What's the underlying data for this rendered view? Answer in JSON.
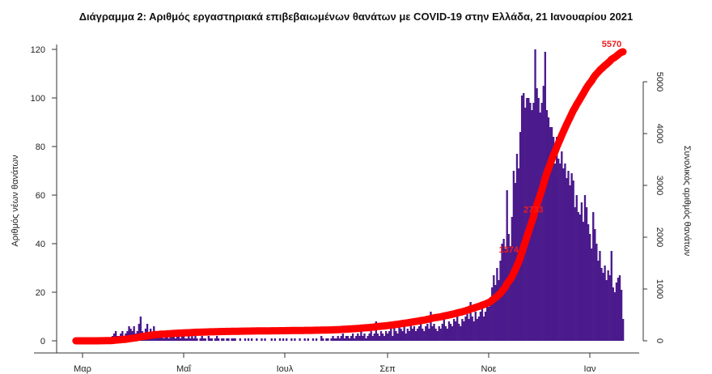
{
  "chart_data": {
    "type": "bar+line",
    "title": "Διάγραμμα 2: Αριθμός εργαστηριακά επιβεβαιωμένων θανάτων με COVID-19 στην Ελλάδα, 21 Ιανουαρίου 2021",
    "ylabel": "Αριθμός νέων θανάτων",
    "y2label": "Συνολικός αριθμός θανάτων",
    "xlabel": "",
    "x_start": "2020-02-26",
    "x_end": "2021-01-21",
    "x_ticks": [
      {
        "date": "2020-03-01",
        "label": "Μαρ"
      },
      {
        "date": "2020-05-01",
        "label": "Μαΐ"
      },
      {
        "date": "2020-07-01",
        "label": "Ιουλ"
      },
      {
        "date": "2020-09-01",
        "label": "Σεπ"
      },
      {
        "date": "2020-11-01",
        "label": "Νοε"
      },
      {
        "date": "2021-01-01",
        "label": "Ιαν"
      }
    ],
    "ylim": [
      0,
      120
    ],
    "y_ticks": [
      "0",
      "20",
      "40",
      "60",
      "80",
      "100",
      "120"
    ],
    "y2lim": [
      0,
      5000
    ],
    "y2_ticks": [
      "0",
      "1000",
      "2000",
      "3000",
      "4000",
      "5000"
    ],
    "grid": false,
    "colors": {
      "bars": "#4b1a8c",
      "cumulative": "#ff0000"
    },
    "series": [
      {
        "type": "bar",
        "axis": "left",
        "daily_deaths": [
          0,
          0,
          0,
          0,
          0,
          0,
          0,
          0,
          0,
          0,
          0,
          0,
          0,
          0,
          0,
          1,
          0,
          1,
          1,
          0,
          1,
          1,
          2,
          3,
          4,
          2,
          2,
          3,
          4,
          2,
          3,
          4,
          6,
          5,
          4,
          6,
          3,
          4,
          7,
          10,
          4,
          3,
          5,
          7,
          3,
          5,
          3,
          6,
          4,
          3,
          2,
          3,
          2,
          1,
          2,
          2,
          1,
          2,
          3,
          2,
          1,
          2,
          3,
          1,
          2,
          2,
          1,
          1,
          2,
          1,
          3,
          1,
          2,
          1,
          0,
          1,
          2,
          1,
          1,
          0,
          2,
          1,
          1,
          0,
          1,
          2,
          1,
          0,
          1,
          1,
          0,
          1,
          1,
          0,
          1,
          1,
          1,
          0,
          0,
          1,
          0,
          0,
          1,
          0,
          1,
          0,
          1,
          0,
          0,
          1,
          0,
          0,
          1,
          0,
          1,
          0,
          0,
          0,
          1,
          0,
          1,
          0,
          0,
          1,
          0,
          1,
          0,
          1,
          0,
          0,
          1,
          0,
          1,
          0,
          0,
          1,
          0,
          0,
          1,
          0,
          1,
          0,
          0,
          1,
          0,
          1,
          0,
          0,
          2,
          1,
          0,
          1,
          1,
          0,
          1,
          2,
          1,
          1,
          2,
          1,
          2,
          3,
          1,
          2,
          2,
          1,
          2,
          3,
          1,
          2,
          3,
          2,
          4,
          2,
          3,
          1,
          2,
          3,
          4,
          2,
          3,
          8,
          3,
          2,
          4,
          3,
          2,
          4,
          3,
          4,
          5,
          2,
          6,
          4,
          3,
          6,
          5,
          4,
          6,
          3,
          5,
          4,
          7,
          5,
          6,
          4,
          5,
          6,
          7,
          5,
          4,
          6,
          7,
          5,
          12,
          6,
          7,
          5,
          4,
          6,
          5,
          7,
          9,
          6,
          5,
          8,
          7,
          6,
          9,
          8,
          10,
          7,
          6,
          9,
          8,
          10,
          11,
          9,
          16,
          10,
          8,
          12,
          9,
          10,
          12,
          14,
          10,
          12,
          14,
          14,
          18,
          22,
          27,
          23,
          30,
          25,
          33,
          40,
          42,
          38,
          62,
          44,
          39,
          51,
          70,
          65,
          77,
          71,
          86,
          101,
          102,
          96,
          100,
          100,
          98,
          95,
          98,
          120,
          104,
          100,
          94,
          98,
          105,
          119,
          95,
          92,
          88,
          88,
          84,
          73,
          84,
          75,
          73,
          78,
          71,
          73,
          67,
          70,
          64,
          69,
          66,
          55,
          60,
          53,
          52,
          57,
          49,
          60,
          55,
          48,
          44,
          38,
          53,
          46,
          40,
          33,
          37,
          30,
          28,
          31,
          25,
          29,
          27,
          37,
          22,
          20,
          24,
          26,
          27,
          21,
          9
        ]
      },
      {
        "type": "line",
        "axis": "right",
        "cumulative_labels": [
          {
            "date": "2020-11-15",
            "label": "1374"
          },
          {
            "date": "2020-11-26",
            "label": "2733"
          },
          {
            "date": "2021-01-21",
            "label": "5570"
          }
        ]
      }
    ]
  }
}
